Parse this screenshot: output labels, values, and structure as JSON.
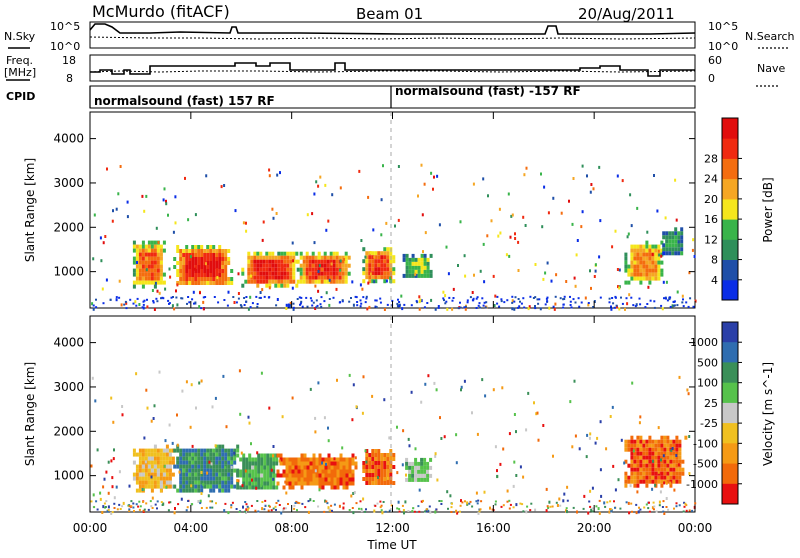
{
  "header": {
    "site": "McMurdo (fitACF)",
    "beam": "Beam 01",
    "date": "20/Aug/2011"
  },
  "top_panels": {
    "nsky_label": "N.Sky",
    "nsky_ticks": [
      "10^5",
      "10^0"
    ],
    "nsearch_label": "N.Search",
    "nsearch_ticks": [
      "10^5",
      "10^0"
    ],
    "freq_label": "Freq.",
    "freq_unit": "[MHz]",
    "freq_ticks": [
      "18",
      "8"
    ],
    "nave_label": "Nave",
    "nave_ticks": [
      "60",
      "0"
    ],
    "cpid_label": "CPID",
    "cpid_segments": [
      "normalsound (fast) 157 RF",
      "normalsound (fast) -157 RF"
    ]
  },
  "chart_data": [
    {
      "type": "heatmap",
      "quantity": "Power",
      "ylabel": "Slant Range [km]",
      "xlabel": "Time UT",
      "xlim": [
        0,
        24
      ],
      "ylim": [
        180,
        4600
      ],
      "x_ticks": [
        "00:00",
        "04:00",
        "08:00",
        "12:00",
        "16:00",
        "20:00",
        "00:00"
      ],
      "y_ticks": [
        "1000",
        "2000",
        "3000",
        "4000"
      ],
      "colorbar_label": "Power [dB]",
      "colorbar_ticks": [
        "4",
        "8",
        "12",
        "16",
        "20",
        "24",
        "28"
      ],
      "colorbar_colors": [
        "#0a2de6",
        "#1f4fa8",
        "#2f8f5a",
        "#39b44a",
        "#f5e61c",
        "#f5a623",
        "#f46d0f",
        "#f02a10",
        "#e10d0d"
      ],
      "regions": [
        {
          "t0": 1.7,
          "t1": 2.9,
          "r0": 700,
          "r1": 1700,
          "level": 0.8
        },
        {
          "t0": 3.3,
          "t1": 5.6,
          "r0": 700,
          "r1": 1600,
          "level": 0.95
        },
        {
          "t0": 6.0,
          "t1": 8.2,
          "r0": 700,
          "r1": 1450,
          "level": 0.95
        },
        {
          "t0": 8.2,
          "t1": 10.3,
          "r0": 750,
          "r1": 1450,
          "level": 0.9
        },
        {
          "t0": 10.8,
          "t1": 12.0,
          "r0": 800,
          "r1": 1550,
          "level": 0.9
        },
        {
          "t0": 12.4,
          "t1": 13.5,
          "r0": 900,
          "r1": 1400,
          "level": 0.45
        },
        {
          "t0": 21.2,
          "t1": 22.7,
          "r0": 750,
          "r1": 1700,
          "level": 0.7
        },
        {
          "t0": 22.7,
          "t1": 23.5,
          "r0": 1400,
          "r1": 2000,
          "level": 0.3
        }
      ]
    },
    {
      "type": "heatmap",
      "quantity": "Velocity",
      "ylabel": "Slant Range [km]",
      "xlabel": "Time UT",
      "xlim": [
        0,
        24
      ],
      "ylim": [
        180,
        4600
      ],
      "x_ticks": [
        "00:00",
        "04:00",
        "08:00",
        "12:00",
        "16:00",
        "20:00",
        "00:00"
      ],
      "y_ticks": [
        "1000",
        "2000",
        "3000",
        "4000"
      ],
      "colorbar_label": "Velocity [m s^-1]",
      "colorbar_ticks": [
        "1000",
        "500",
        "100",
        "25",
        "-25",
        "-100",
        "-500",
        "-1000"
      ],
      "colorbar_colors": [
        "#2a3fa8",
        "#2f6db0",
        "#3a8f58",
        "#56c24b",
        "#c8c8c8",
        "#f0c020",
        "#f59a15",
        "#f26a0a",
        "#e81010"
      ],
      "regions": [
        {
          "t0": 1.7,
          "t1": 3.3,
          "r0": 700,
          "r1": 1700,
          "level": -0.3
        },
        {
          "t0": 3.3,
          "t1": 5.8,
          "r0": 700,
          "r1": 1700,
          "level": 0.55
        },
        {
          "t0": 5.8,
          "t1": 7.4,
          "r0": 700,
          "r1": 1500,
          "level": 0.35
        },
        {
          "t0": 7.4,
          "t1": 10.6,
          "r0": 750,
          "r1": 1500,
          "level": -0.7
        },
        {
          "t0": 10.8,
          "t1": 12.0,
          "r0": 800,
          "r1": 1600,
          "level": -0.7
        },
        {
          "t0": 12.5,
          "t1": 13.5,
          "r0": 900,
          "r1": 1400,
          "level": 0.2
        },
        {
          "t0": 21.2,
          "t1": 23.6,
          "r0": 800,
          "r1": 1900,
          "level": -0.75
        }
      ]
    }
  ]
}
